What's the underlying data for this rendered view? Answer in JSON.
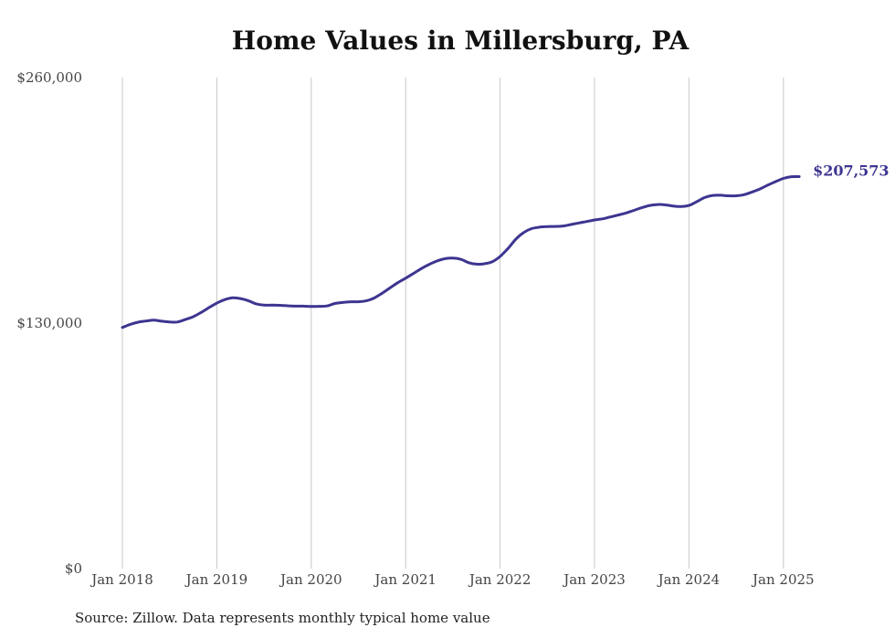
{
  "chart_data": {
    "type": "line",
    "title": "Home Values in Millersburg, PA",
    "xlabel": "",
    "ylabel": "",
    "ylim": [
      0,
      260000
    ],
    "yticks": [
      {
        "value": 0,
        "label": "$0"
      },
      {
        "value": 130000,
        "label": "$130,000"
      },
      {
        "value": 260000,
        "label": "$260,000"
      }
    ],
    "xticks": [
      {
        "value": 2018,
        "label": "Jan 2018"
      },
      {
        "value": 2019,
        "label": "Jan 2019"
      },
      {
        "value": 2020,
        "label": "Jan 2020"
      },
      {
        "value": 2021,
        "label": "Jan 2021"
      },
      {
        "value": 2022,
        "label": "Jan 2022"
      },
      {
        "value": 2023,
        "label": "Jan 2023"
      },
      {
        "value": 2024,
        "label": "Jan 2024"
      },
      {
        "value": 2025,
        "label": "Jan 2025"
      }
    ],
    "xlim": [
      2018,
      2025.17
    ],
    "grid": "vertical",
    "line_color": "#3d3590",
    "end_label": "$207,573",
    "series": [
      {
        "x": [
          2018.0,
          2018.083,
          2018.167,
          2018.25,
          2018.333,
          2018.417,
          2018.5,
          2018.583,
          2018.667,
          2018.75,
          2018.833,
          2018.917,
          2019.0,
          2019.083,
          2019.167,
          2019.25,
          2019.333,
          2019.417,
          2019.5,
          2019.583,
          2019.667,
          2019.75,
          2019.833,
          2019.917,
          2020.0,
          2020.083,
          2020.167,
          2020.25,
          2020.333,
          2020.417,
          2020.5,
          2020.583,
          2020.667,
          2020.75,
          2020.833,
          2020.917,
          2021.0,
          2021.083,
          2021.167,
          2021.25,
          2021.333,
          2021.417,
          2021.5,
          2021.583,
          2021.667,
          2021.75,
          2021.833,
          2021.917,
          2022.0,
          2022.083,
          2022.167,
          2022.25,
          2022.333,
          2022.417,
          2022.5,
          2022.583,
          2022.667,
          2022.75,
          2022.833,
          2022.917,
          2023.0,
          2023.083,
          2023.167,
          2023.25,
          2023.333,
          2023.417,
          2023.5,
          2023.583,
          2023.667,
          2023.75,
          2023.833,
          2023.917,
          2024.0,
          2024.083,
          2024.167,
          2024.25,
          2024.333,
          2024.417,
          2024.5,
          2024.583,
          2024.667,
          2024.75,
          2024.833,
          2024.917,
          2025.0,
          2025.083,
          2025.167
        ],
        "values": [
          127700,
          129300,
          130500,
          131100,
          131600,
          131000,
          130600,
          130600,
          131900,
          133400,
          135600,
          138200,
          140600,
          142400,
          143400,
          143000,
          141900,
          140200,
          139500,
          139500,
          139400,
          139200,
          139000,
          139000,
          138800,
          138900,
          139100,
          140400,
          140900,
          141300,
          141300,
          141800,
          143300,
          145800,
          148600,
          151400,
          153800,
          156300,
          158900,
          161100,
          162900,
          164100,
          164400,
          163800,
          162000,
          161200,
          161400,
          162500,
          165300,
          169500,
          174500,
          178000,
          180000,
          180800,
          181100,
          181200,
          181400,
          182200,
          183000,
          183800,
          184600,
          185200,
          186200,
          187200,
          188300,
          189700,
          191100,
          192300,
          192800,
          192600,
          192000,
          191700,
          192300,
          194300,
          196500,
          197600,
          197700,
          197400,
          197400,
          198000,
          199400,
          201000,
          203000,
          204900,
          206600,
          207500,
          207573
        ]
      }
    ]
  },
  "source": "Source: Zillow. Data represents monthly typical home value"
}
